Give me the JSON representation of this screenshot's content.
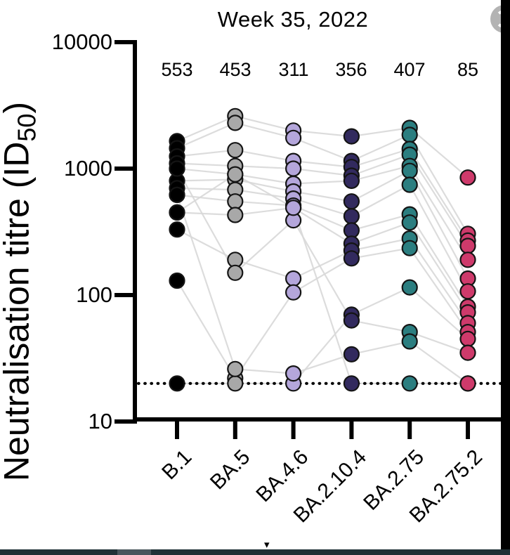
{
  "chart_data": {
    "type": "scatter",
    "title": "Week 35, 2022",
    "ylabel": {
      "pre": "Neutralisation titre (ID",
      "sub": "50",
      "post": ")"
    },
    "xlabel": "",
    "categories": [
      "B.1",
      "BA.5",
      "BA.4.6",
      "BA.2.10.4",
      "BA.2.75",
      "BA.2.75.2"
    ],
    "counts": [
      "553",
      "453",
      "311",
      "356",
      "407",
      "85"
    ],
    "ytick_labels": [
      "10000",
      "1000",
      "100",
      "10"
    ],
    "ytick_values": [
      10000,
      1000,
      100,
      10
    ],
    "ylim": [
      10,
      10000
    ],
    "yscale": "log10",
    "grid": "off",
    "legend": "none",
    "lod_line_value": 20,
    "line_color": "#d8d8d8",
    "marker_stroke": "#141414",
    "group_colors": [
      "#000000",
      "#a8a8a8",
      "#b4a6db",
      "#322a5e",
      "#2b7e80",
      "#ce3a6b"
    ],
    "series": [
      {
        "name": "subject-1",
        "values": [
          1650,
          2600,
          2000,
          1800,
          2100,
          850
        ]
      },
      {
        "name": "subject-2",
        "values": [
          1450,
          2300,
          1750,
          1150,
          1850,
          305
        ]
      },
      {
        "name": "subject-3",
        "values": [
          1250,
          1400,
          1150,
          1030,
          1430,
          270
        ]
      },
      {
        "name": "subject-4",
        "values": [
          1100,
          1050,
          1000,
          880,
          1290,
          245
        ]
      },
      {
        "name": "subject-5",
        "values": [
          1000,
          900,
          760,
          800,
          1050,
          190
        ]
      },
      {
        "name": "subject-6",
        "values": [
          800,
          820,
          660,
          550,
          960,
          135
        ]
      },
      {
        "name": "subject-7",
        "values": [
          700,
          680,
          580,
          420,
          745,
          107
        ]
      },
      {
        "name": "subject-8",
        "values": [
          620,
          550,
          510,
          325,
          435,
          81
        ]
      },
      {
        "name": "subject-9",
        "values": [
          450,
          430,
          490,
          255,
          375,
          73
        ]
      },
      {
        "name": "subject-10",
        "values": [
          330,
          190,
          135,
          225,
          280,
          60
        ]
      },
      {
        "name": "subject-11",
        "values": [
          130,
          22,
          105,
          195,
          235,
          51
        ]
      },
      {
        "name": "subject-12",
        "values": [
          20,
          20,
          20,
          70,
          115,
          45
        ]
      },
      {
        "name": "subject-13",
        "values": [
          1000,
          150,
          390,
          63,
          51,
          35
        ]
      },
      {
        "name": "subject-14",
        "values": [
          620,
          26,
          24,
          34,
          43,
          20
        ]
      },
      {
        "name": "subject-15",
        "values": [
          450,
          900,
          490,
          20,
          20,
          20
        ]
      }
    ]
  },
  "overlay": {
    "badge_color": "#b3b3b3",
    "caret_glyph": "▾",
    "bottom_bar_color": "#203136",
    "bottom_bar_segment_color": "#49565c"
  }
}
